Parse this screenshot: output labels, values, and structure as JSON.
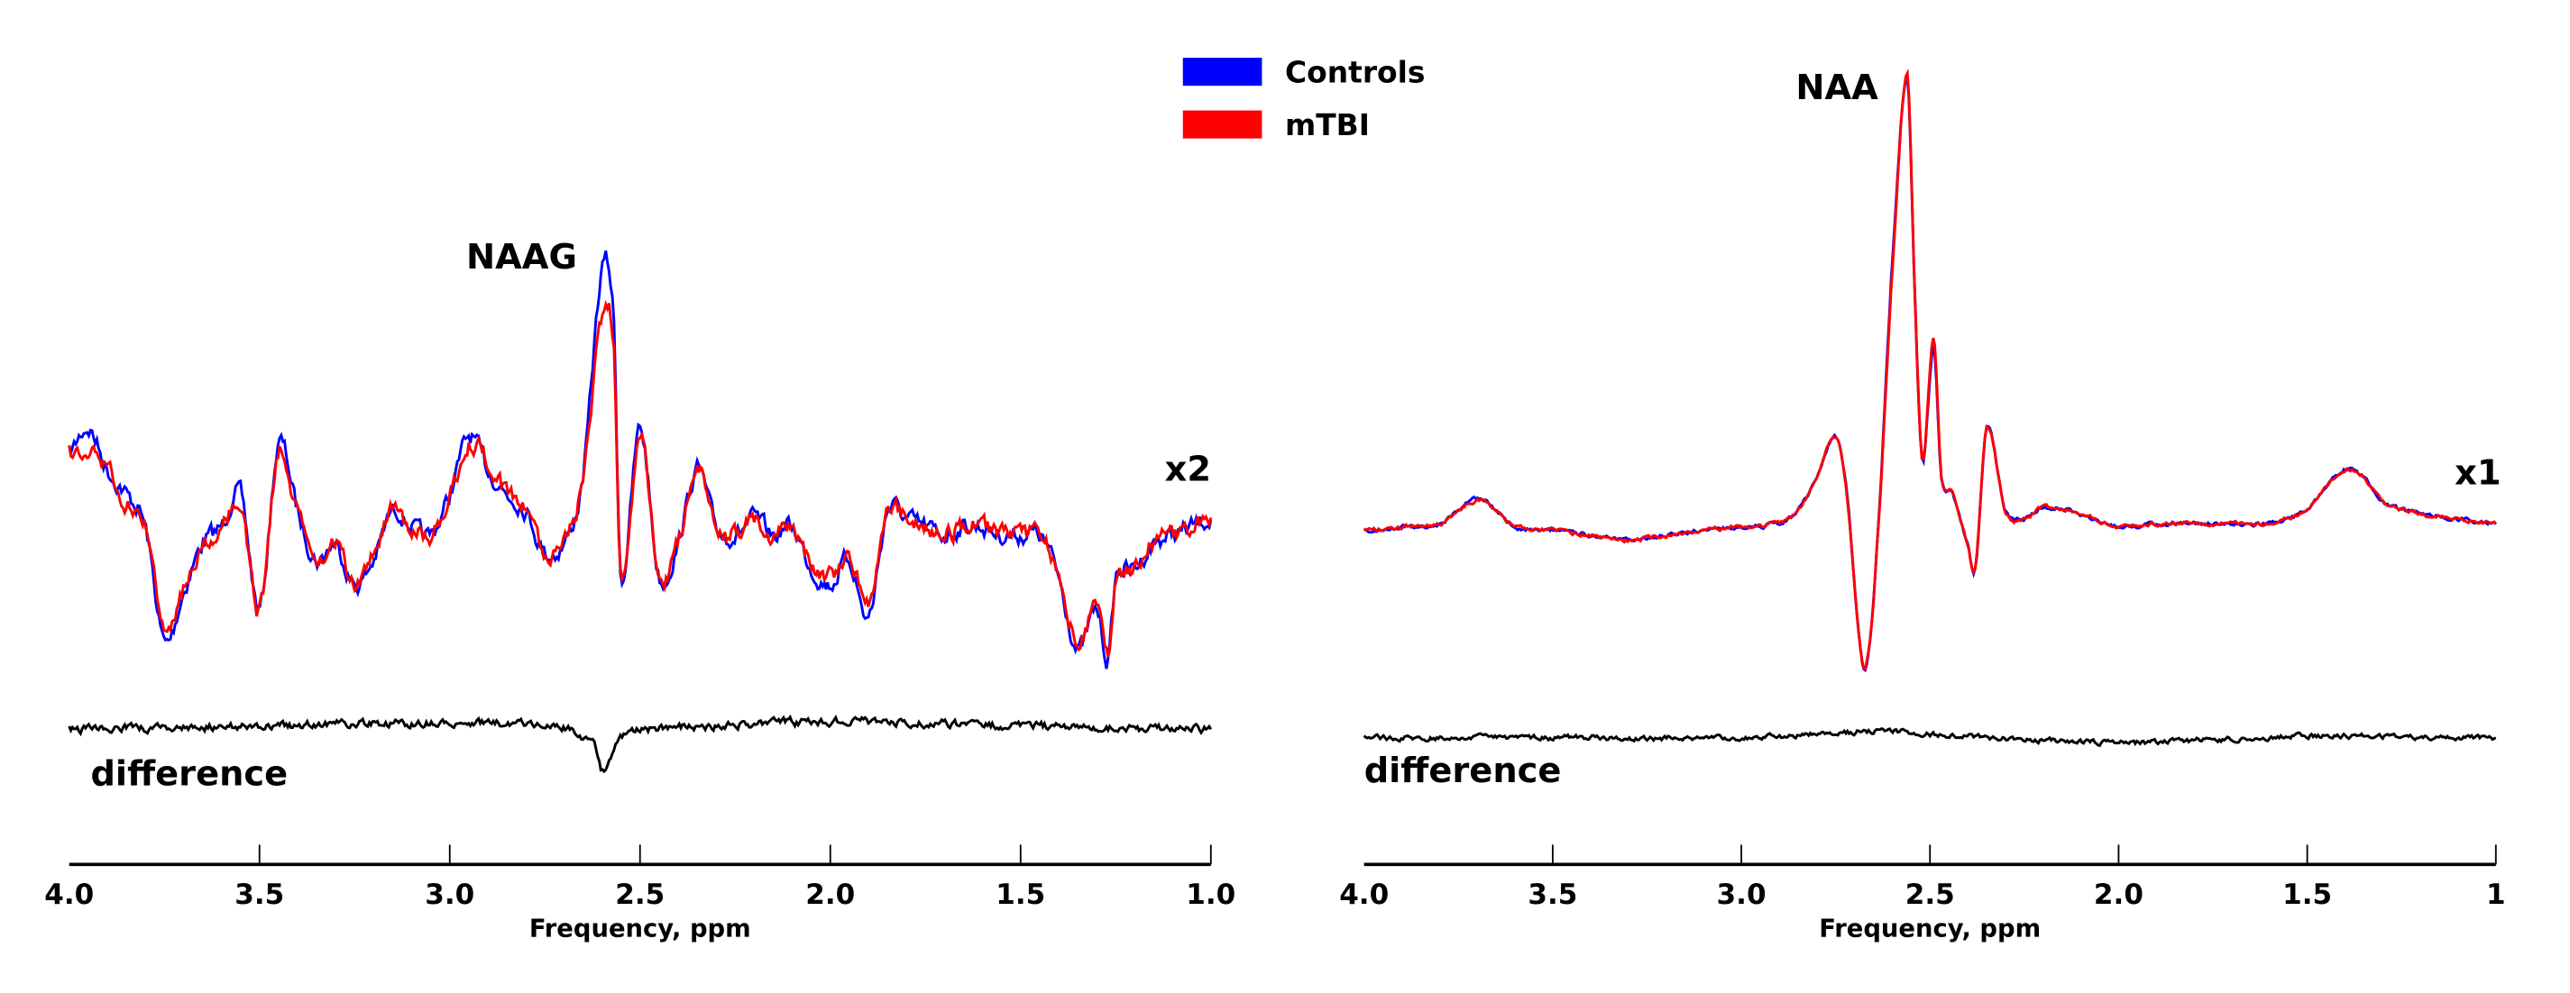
{
  "legend": [
    {
      "label": "Controls",
      "color": "#0000ff"
    },
    {
      "label": "mTBI",
      "color": "#ff0000"
    }
  ],
  "chart_data": [
    {
      "type": "line",
      "panel": "left",
      "xlabel": "Frequency, ppm",
      "xlim": [
        4.0,
        1.0
      ],
      "tick_labels": [
        "4.0",
        "3.5",
        "3.0",
        "2.5",
        "2.0",
        "1.5",
        "1.0"
      ],
      "ticks": [
        4.0,
        3.5,
        3.0,
        2.5,
        2.0,
        1.5,
        1.0
      ],
      "annotations": {
        "peak": "NAAG",
        "scale": "x2",
        "difference": "difference"
      },
      "x": [
        4.0,
        3.95,
        3.9,
        3.85,
        3.8,
        3.75,
        3.7,
        3.65,
        3.6,
        3.55,
        3.5,
        3.45,
        3.4,
        3.35,
        3.3,
        3.25,
        3.2,
        3.15,
        3.1,
        3.05,
        3.0,
        2.95,
        2.9,
        2.85,
        2.8,
        2.75,
        2.7,
        2.65,
        2.6,
        2.57,
        2.55,
        2.5,
        2.45,
        2.4,
        2.35,
        2.3,
        2.25,
        2.2,
        2.15,
        2.1,
        2.05,
        2.0,
        1.95,
        1.9,
        1.85,
        1.8,
        1.75,
        1.7,
        1.65,
        1.6,
        1.55,
        1.5,
        1.45,
        1.4,
        1.35,
        1.3,
        1.27,
        1.25,
        1.2,
        1.15,
        1.1,
        1.05,
        1.0
      ],
      "series": [
        {
          "name": "Controls",
          "color": "#0000ff",
          "values": [
            45,
            60,
            35,
            20,
            0,
            -70,
            -40,
            -10,
            0,
            20,
            -50,
            50,
            10,
            -20,
            -10,
            -35,
            -20,
            10,
            0,
            -5,
            20,
            55,
            35,
            20,
            10,
            -15,
            -10,
            30,
            155,
            130,
            -30,
            60,
            -30,
            -10,
            35,
            0,
            -5,
            5,
            -5,
            0,
            -25,
            -35,
            -20,
            -55,
            10,
            5,
            0,
            -5,
            0,
            0,
            -5,
            -5,
            -5,
            -30,
            -75,
            -50,
            -80,
            -30,
            -25,
            -10,
            -5,
            0,
            5
          ]
        },
        {
          "name": "mTBI",
          "color": "#ff0000",
          "values": [
            45,
            45,
            35,
            15,
            0,
            -65,
            -40,
            -10,
            0,
            15,
            -50,
            45,
            10,
            -20,
            -10,
            -35,
            -15,
            10,
            0,
            -5,
            20,
            50,
            40,
            20,
            10,
            -15,
            -10,
            30,
            125,
            115,
            -30,
            55,
            -30,
            -10,
            35,
            0,
            -5,
            5,
            -5,
            0,
            -25,
            -30,
            -20,
            -45,
            10,
            5,
            0,
            -5,
            0,
            0,
            -5,
            -5,
            -5,
            -30,
            -70,
            -45,
            -75,
            -30,
            -25,
            -10,
            -5,
            0,
            5
          ]
        }
      ],
      "difference": {
        "x": [
          4.0,
          3.5,
          3.0,
          2.7,
          2.62,
          2.6,
          2.55,
          2.5,
          2.0,
          1.5,
          1.0
        ],
        "values": [
          0,
          2,
          4,
          2,
          -10,
          -25,
          -5,
          0,
          5,
          2,
          0
        ]
      }
    },
    {
      "type": "line",
      "panel": "right",
      "xlabel": "Frequency, ppm",
      "xlim": [
        4.0,
        1.0
      ],
      "tick_labels": [
        "4.0",
        "3.5",
        "3.0",
        "2.5",
        "2.0",
        "1.5",
        "1"
      ],
      "ticks": [
        4.0,
        3.5,
        3.0,
        2.5,
        2.0,
        1.5,
        1.0
      ],
      "annotations": {
        "peak": "NAA",
        "scale": "x1",
        "difference": "difference"
      },
      "x": [
        4.0,
        3.9,
        3.8,
        3.7,
        3.65,
        3.6,
        3.5,
        3.4,
        3.3,
        3.2,
        3.1,
        3.0,
        2.9,
        2.85,
        2.8,
        2.75,
        2.72,
        2.69,
        2.67,
        2.64,
        2.6,
        2.56,
        2.54,
        2.52,
        2.49,
        2.47,
        2.44,
        2.4,
        2.38,
        2.35,
        2.3,
        2.25,
        2.2,
        2.1,
        2.0,
        1.9,
        1.8,
        1.7,
        1.6,
        1.5,
        1.45,
        1.4,
        1.35,
        1.3,
        1.2,
        1.1,
        1.0
      ],
      "series": [
        {
          "name": "Controls",
          "color": "#0000ff",
          "values": [
            -2,
            0,
            2,
            18,
            10,
            0,
            -2,
            -5,
            -8,
            -5,
            -2,
            0,
            2,
            10,
            30,
            55,
            20,
            -60,
            -85,
            -10,
            160,
            272,
            140,
            40,
            110,
            30,
            20,
            -10,
            -25,
            60,
            10,
            5,
            12,
            8,
            0,
            2,
            2,
            2,
            2,
            10,
            25,
            35,
            30,
            15,
            8,
            5,
            2
          ]
        },
        {
          "name": "mTBI",
          "color": "#ff0000",
          "values": [
            -2,
            0,
            2,
            16,
            10,
            0,
            -2,
            -5,
            -8,
            -5,
            -2,
            0,
            2,
            10,
            30,
            55,
            20,
            -60,
            -85,
            -10,
            155,
            275,
            140,
            40,
            115,
            30,
            20,
            -10,
            -25,
            60,
            10,
            5,
            12,
            8,
            0,
            2,
            2,
            2,
            2,
            10,
            25,
            35,
            30,
            15,
            8,
            5,
            2
          ]
        }
      ],
      "difference": {
        "x": [
          4.0,
          3.5,
          3.0,
          2.6,
          2.55,
          2.0,
          1.5,
          1.0
        ],
        "values": [
          0,
          0,
          0,
          4,
          2,
          -3,
          1,
          0
        ]
      }
    }
  ]
}
